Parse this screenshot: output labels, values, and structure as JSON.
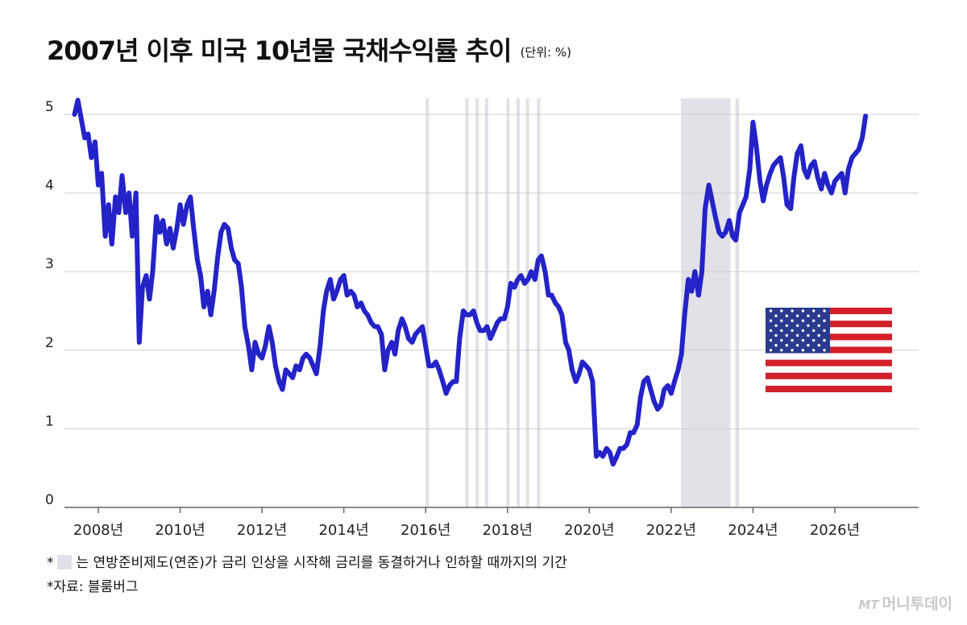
{
  "header": {
    "title": "2007년 이후 미국 10년물 국채수익률 추이",
    "unit": "(단위: %)"
  },
  "notes": {
    "legend_star": "*",
    "legend_text": "는 연방준비제도(연준)가 금리 인상을 시작해 금리를 동결하거나 인하할 때까지의 기간",
    "source": "*자료: 블룸버그"
  },
  "logo": {
    "mark": "MT",
    "name": "머니투데이"
  },
  "colors": {
    "line": "#2323c8",
    "band": "#e1e1e7",
    "grid": "#cfcfcf"
  },
  "flag_icon": "us-flag-icon",
  "chart_data": {
    "type": "line",
    "ylim": [
      0,
      5.2
    ],
    "yticks": [
      "0",
      "1",
      "2",
      "3",
      "4",
      "5"
    ],
    "xlim": [
      2007.0,
      2028.0
    ],
    "xtick_labels": [
      "2008년",
      "2010년",
      "2012년",
      "2014년",
      "2016년",
      "2018년",
      "2020년",
      "2022년",
      "2024년",
      "2026년"
    ],
    "xtick_values": [
      2008,
      2010,
      2012,
      2014,
      2016,
      2018,
      2020,
      2022,
      2024,
      2026
    ],
    "shaded_periods": [
      [
        2016.0,
        2016.06
      ],
      [
        2016.97,
        2017.03
      ],
      [
        2017.22,
        2017.28
      ],
      [
        2017.45,
        2017.51
      ],
      [
        2017.97,
        2018.03
      ],
      [
        2018.22,
        2018.28
      ],
      [
        2018.45,
        2018.51
      ],
      [
        2018.72,
        2018.78
      ],
      [
        2022.24,
        2023.45
      ],
      [
        2023.57,
        2023.66
      ]
    ],
    "series": [
      {
        "x": [
          2007.42,
          2007.5,
          2007.58,
          2007.67,
          2007.75,
          2007.83,
          2007.92,
          2008.0,
          2008.08,
          2008.17,
          2008.25,
          2008.33,
          2008.42,
          2008.5,
          2008.58,
          2008.67,
          2008.75,
          2008.83,
          2008.92,
          2009.0,
          2009.08,
          2009.17,
          2009.25,
          2009.33,
          2009.42,
          2009.5,
          2009.58,
          2009.67,
          2009.75,
          2009.83,
          2009.92,
          2010.0,
          2010.08,
          2010.17,
          2010.25,
          2010.33,
          2010.42,
          2010.5,
          2010.58,
          2010.67,
          2010.75,
          2010.83,
          2010.92,
          2011.0,
          2011.08,
          2011.17,
          2011.25,
          2011.33,
          2011.42,
          2011.5,
          2011.58,
          2011.67,
          2011.75,
          2011.83,
          2011.92,
          2012.0,
          2012.08,
          2012.17,
          2012.25,
          2012.33,
          2012.42,
          2012.5,
          2012.58,
          2012.67,
          2012.75,
          2012.83,
          2012.92,
          2013.0,
          2013.08,
          2013.17,
          2013.25,
          2013.33,
          2013.42,
          2013.5,
          2013.58,
          2013.67,
          2013.75,
          2013.83,
          2013.92,
          2014.0,
          2014.08,
          2014.17,
          2014.25,
          2014.33,
          2014.42,
          2014.5,
          2014.58,
          2014.67,
          2014.75,
          2014.83,
          2014.92,
          2015.0,
          2015.08,
          2015.17,
          2015.25,
          2015.33,
          2015.42,
          2015.5,
          2015.58,
          2015.67,
          2015.75,
          2015.83,
          2015.92,
          2016.0,
          2016.08,
          2016.17,
          2016.25,
          2016.33,
          2016.42,
          2016.5,
          2016.58,
          2016.67,
          2016.75,
          2016.83,
          2016.92,
          2017.0,
          2017.08,
          2017.17,
          2017.25,
          2017.33,
          2017.42,
          2017.5,
          2017.58,
          2017.67,
          2017.75,
          2017.83,
          2017.92,
          2018.0,
          2018.08,
          2018.17,
          2018.25,
          2018.33,
          2018.42,
          2018.5,
          2018.58,
          2018.67,
          2018.75,
          2018.83,
          2018.92,
          2019.0,
          2019.08,
          2019.17,
          2019.25,
          2019.33,
          2019.42,
          2019.5,
          2019.58,
          2019.67,
          2019.75,
          2019.83,
          2019.92,
          2020.0,
          2020.08,
          2020.17,
          2020.25,
          2020.33,
          2020.42,
          2020.5,
          2020.58,
          2020.67,
          2020.75,
          2020.83,
          2020.92,
          2021.0,
          2021.08,
          2021.17,
          2021.25,
          2021.33,
          2021.42,
          2021.5,
          2021.58,
          2021.67,
          2021.75,
          2021.83,
          2021.92,
          2022.0,
          2022.08,
          2022.17,
          2022.25,
          2022.33,
          2022.42,
          2022.5,
          2022.58,
          2022.67,
          2022.75,
          2022.83,
          2022.92,
          2023.0,
          2023.08,
          2023.17,
          2023.25,
          2023.33,
          2023.42,
          2023.5,
          2023.58,
          2023.67,
          2023.75,
          2023.83,
          2023.92,
          2024.0,
          2024.08,
          2024.17,
          2024.25,
          2024.33,
          2024.42,
          2024.5,
          2024.58,
          2024.67,
          2024.75,
          2024.83,
          2024.92,
          2025.0,
          2025.08,
          2025.17,
          2025.25,
          2025.33,
          2025.42,
          2025.5,
          2025.58,
          2025.67,
          2025.75,
          2025.83,
          2025.92,
          2026.0,
          2026.08,
          2026.17,
          2026.25,
          2026.33,
          2026.42,
          2026.5,
          2026.58,
          2026.67,
          2026.75
        ],
        "values": [
          5.0,
          5.18,
          4.95,
          4.7,
          4.75,
          4.45,
          4.65,
          4.1,
          4.25,
          3.45,
          3.85,
          3.35,
          3.95,
          3.75,
          4.22,
          3.75,
          4.0,
          3.45,
          4.0,
          2.1,
          2.8,
          2.95,
          2.65,
          3.0,
          3.7,
          3.5,
          3.65,
          3.35,
          3.55,
          3.3,
          3.55,
          3.85,
          3.6,
          3.85,
          3.95,
          3.55,
          3.15,
          2.95,
          2.55,
          2.75,
          2.45,
          2.75,
          3.2,
          3.5,
          3.6,
          3.55,
          3.3,
          3.15,
          3.1,
          2.8,
          2.3,
          2.05,
          1.75,
          2.1,
          1.95,
          1.9,
          2.05,
          2.3,
          2.1,
          1.8,
          1.6,
          1.5,
          1.75,
          1.7,
          1.65,
          1.8,
          1.75,
          1.9,
          1.95,
          1.9,
          1.8,
          1.7,
          2.05,
          2.5,
          2.75,
          2.9,
          2.65,
          2.75,
          2.9,
          2.95,
          2.7,
          2.75,
          2.7,
          2.55,
          2.6,
          2.5,
          2.45,
          2.35,
          2.3,
          2.3,
          2.2,
          1.75,
          2.0,
          2.1,
          1.95,
          2.25,
          2.4,
          2.3,
          2.15,
          2.1,
          2.2,
          2.25,
          2.3,
          2.05,
          1.8,
          1.8,
          1.85,
          1.75,
          1.6,
          1.45,
          1.55,
          1.6,
          1.6,
          2.15,
          2.5,
          2.45,
          2.45,
          2.5,
          2.35,
          2.25,
          2.25,
          2.3,
          2.15,
          2.25,
          2.35,
          2.4,
          2.4,
          2.55,
          2.85,
          2.8,
          2.9,
          2.95,
          2.85,
          2.9,
          3.0,
          2.9,
          3.15,
          3.2,
          3.0,
          2.7,
          2.7,
          2.6,
          2.55,
          2.45,
          2.1,
          2.0,
          1.75,
          1.6,
          1.7,
          1.85,
          1.8,
          1.75,
          1.6,
          0.65,
          0.7,
          0.65,
          0.75,
          0.7,
          0.55,
          0.65,
          0.75,
          0.75,
          0.8,
          0.95,
          0.95,
          1.05,
          1.4,
          1.6,
          1.65,
          1.5,
          1.35,
          1.25,
          1.3,
          1.5,
          1.55,
          1.45,
          1.6,
          1.75,
          1.95,
          2.45,
          2.9,
          2.75,
          3.0,
          2.7,
          3.0,
          3.8,
          4.1,
          3.9,
          3.7,
          3.5,
          3.45,
          3.5,
          3.65,
          3.45,
          3.4,
          3.75,
          3.85,
          3.95,
          4.3,
          4.9,
          4.6,
          4.15,
          3.9,
          4.1,
          4.25,
          4.35,
          4.4,
          4.45,
          4.2,
          3.85,
          3.8,
          4.2,
          4.5,
          4.6,
          4.3,
          4.2,
          4.35,
          4.4,
          4.2,
          4.05,
          4.25,
          4.1,
          4.0,
          4.15,
          4.2,
          4.25,
          4.0,
          4.3,
          4.45,
          4.5,
          4.55,
          4.7,
          4.98
        ]
      }
    ]
  }
}
